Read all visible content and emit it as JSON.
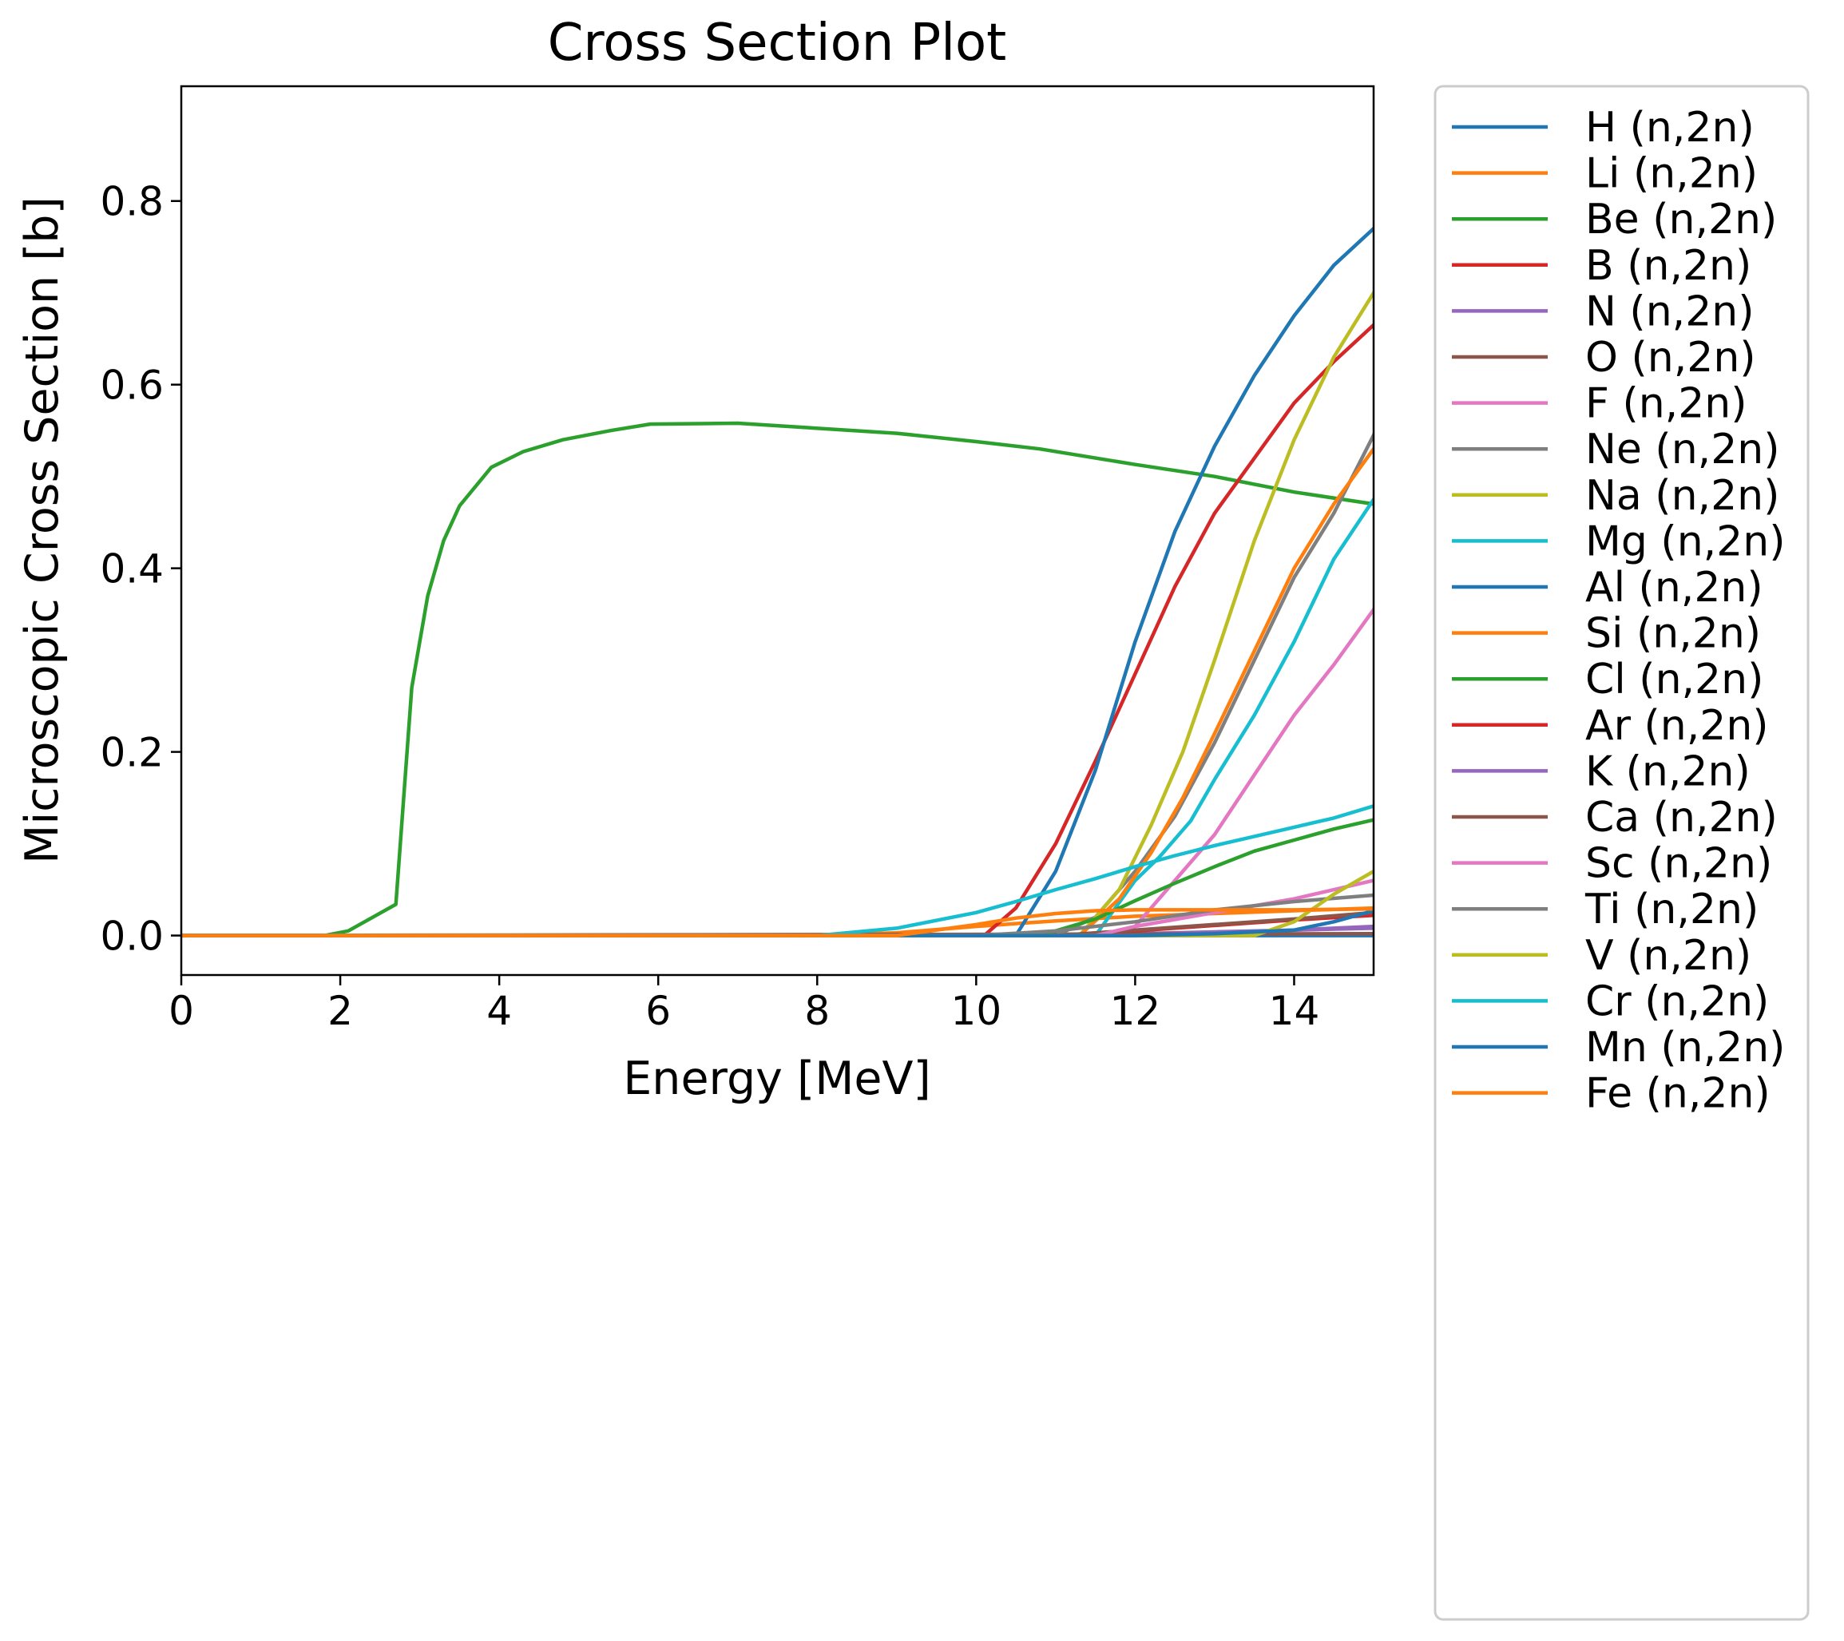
{
  "chart_data": {
    "type": "line",
    "title": "Cross Section Plot",
    "xlabel": "Energy [MeV]",
    "ylabel": "Microscopic Cross Section [b]",
    "xlim": [
      0,
      15
    ],
    "ylim": [
      -0.043,
      0.925
    ],
    "xticks": [
      0,
      2,
      4,
      6,
      8,
      10,
      12,
      14
    ],
    "yticks": [
      0.0,
      0.2,
      0.4,
      0.6,
      0.8
    ],
    "xtick_labels": [
      "0",
      "2",
      "4",
      "6",
      "8",
      "10",
      "12",
      "14"
    ],
    "ytick_labels": [
      "0.0",
      "0.2",
      "0.4",
      "0.6",
      "0.8"
    ],
    "grid": false,
    "legend_position": "outside-right",
    "series": [
      {
        "name": "H (n,2n)",
        "color": "#1f77b4",
        "x": [
          0,
          15
        ],
        "y": [
          0,
          0
        ]
      },
      {
        "name": "Li (n,2n)",
        "color": "#ff7f0e",
        "x": [
          0,
          8,
          9,
          10,
          11,
          12,
          13,
          14,
          15
        ],
        "y": [
          0,
          0,
          0.003,
          0.01,
          0.016,
          0.021,
          0.024,
          0.027,
          0.03
        ]
      },
      {
        "name": "Be (n,2n)",
        "color": "#2ca02c",
        "x": [
          0,
          1.8,
          2.1,
          2.7,
          2.9,
          3.1,
          3.3,
          3.5,
          3.9,
          4.3,
          4.8,
          5.4,
          5.9,
          7.0,
          9.0,
          10.0,
          10.8,
          12.0,
          13.0,
          14.0,
          15.0
        ],
        "y": [
          0,
          0,
          0.005,
          0.034,
          0.27,
          0.37,
          0.43,
          0.468,
          0.51,
          0.527,
          0.54,
          0.55,
          0.557,
          0.558,
          0.547,
          0.538,
          0.53,
          0.513,
          0.5,
          0.483,
          0.47
        ]
      },
      {
        "name": "B (n,2n)",
        "color": "#d62728",
        "x": [
          0,
          10.1,
          10.5,
          11.0,
          11.5,
          12.0,
          12.5,
          13.0,
          13.5,
          14.0,
          14.5,
          15.0
        ],
        "y": [
          0,
          0,
          0.03,
          0.1,
          0.19,
          0.285,
          0.38,
          0.46,
          0.52,
          0.58,
          0.625,
          0.665
        ]
      },
      {
        "name": "N (n,2n)",
        "color": "#9467bd",
        "x": [
          0,
          11.3,
          12,
          13,
          14,
          15
        ],
        "y": [
          0,
          0,
          0.002,
          0.004,
          0.006,
          0.008
        ]
      },
      {
        "name": "O (n,2n)",
        "color": "#8c564b",
        "x": [
          0,
          15.0
        ],
        "y": [
          0,
          0.002
        ]
      },
      {
        "name": "F (n,2n)",
        "color": "#e377c2",
        "x": [
          0,
          11.7,
          12.0,
          12.5,
          13.0,
          13.5,
          14.0,
          14.5,
          15.0
        ],
        "y": [
          0,
          0,
          0.01,
          0.06,
          0.11,
          0.175,
          0.24,
          0.295,
          0.355
        ]
      },
      {
        "name": "Ne (n,2n)",
        "color": "#7f7f7f",
        "x": [
          0,
          11.0,
          11.5,
          12.0,
          12.5,
          13.0,
          13.5,
          14.0,
          14.5,
          15.0
        ],
        "y": [
          0,
          0,
          0.02,
          0.07,
          0.13,
          0.21,
          0.3,
          0.39,
          0.46,
          0.545
        ]
      },
      {
        "name": "Na (n,2n)",
        "color": "#bcbd22",
        "x": [
          0,
          11.3,
          11.8,
          12.2,
          12.6,
          13.0,
          13.5,
          14.0,
          14.5,
          15.0
        ],
        "y": [
          0,
          0,
          0.05,
          0.12,
          0.2,
          0.3,
          0.43,
          0.54,
          0.63,
          0.7
        ]
      },
      {
        "name": "Mg (n,2n)",
        "color": "#17becf",
        "x": [
          0,
          11.5,
          12.0,
          12.3,
          12.7,
          13.0,
          13.5,
          14.0,
          14.5,
          15.0
        ],
        "y": [
          0,
          0,
          0.06,
          0.085,
          0.125,
          0.17,
          0.24,
          0.32,
          0.41,
          0.475
        ]
      },
      {
        "name": "Al (n,2n)",
        "color": "#1f77b4",
        "x": [
          0,
          10.5,
          11.0,
          11.5,
          12.0,
          12.5,
          13.0,
          13.5,
          14.0,
          14.5,
          15.0
        ],
        "y": [
          0,
          0,
          0.07,
          0.18,
          0.32,
          0.44,
          0.533,
          0.61,
          0.675,
          0.73,
          0.77
        ]
      },
      {
        "name": "Si (n,2n)",
        "color": "#ff7f0e",
        "x": [
          0,
          11.3,
          11.8,
          12.2,
          12.6,
          13.0,
          13.5,
          14.0,
          14.5,
          15.0
        ],
        "y": [
          0,
          0,
          0.04,
          0.09,
          0.15,
          0.22,
          0.31,
          0.4,
          0.47,
          0.53
        ]
      },
      {
        "name": "Cl (n,2n)",
        "color": "#2ca02c",
        "x": [
          0,
          10.8,
          11.5,
          12.0,
          12.5,
          13.0,
          13.5,
          14.0,
          14.5,
          15.0
        ],
        "y": [
          0,
          0,
          0.018,
          0.038,
          0.057,
          0.075,
          0.092,
          0.104,
          0.116,
          0.126
        ]
      },
      {
        "name": "Ar (n,2n)",
        "color": "#d62728",
        "x": [
          0,
          11.0,
          12.0,
          13.0,
          14.0,
          15.0
        ],
        "y": [
          0,
          0,
          0.005,
          0.011,
          0.017,
          0.022
        ]
      },
      {
        "name": "K (n,2n)",
        "color": "#9467bd",
        "x": [
          0,
          12.5,
          13.0,
          14.0,
          15.0
        ],
        "y": [
          0,
          0,
          0.002,
          0.006,
          0.01
        ]
      },
      {
        "name": "Ca (n,2n)",
        "color": "#8c564b",
        "x": [
          0,
          11.0,
          12.0,
          13.0,
          14.0,
          15.0
        ],
        "y": [
          0,
          0,
          0.006,
          0.012,
          0.018,
          0.025
        ]
      },
      {
        "name": "Sc (n,2n)",
        "color": "#e377c2",
        "x": [
          0,
          11.5,
          12.0,
          13.0,
          14.0,
          15.0
        ],
        "y": [
          0,
          0,
          0.01,
          0.025,
          0.04,
          0.06
        ]
      },
      {
        "name": "Ti (n,2n)",
        "color": "#7f7f7f",
        "x": [
          0,
          10.0,
          11.0,
          12.0,
          13.0,
          14.0,
          15.0
        ],
        "y": [
          0,
          0,
          0.005,
          0.015,
          0.028,
          0.037,
          0.044
        ]
      },
      {
        "name": "V (n,2n)",
        "color": "#bcbd22",
        "x": [
          0,
          13.5,
          14.0,
          14.5,
          15.0
        ],
        "y": [
          0,
          0,
          0.015,
          0.045,
          0.07
        ]
      },
      {
        "name": "Cr (n,2n)",
        "color": "#17becf",
        "x": [
          0,
          8.0,
          9.0,
          10.0,
          10.5,
          11.0,
          11.5,
          12.0,
          12.5,
          13.0,
          13.5,
          14.0,
          14.5,
          15.0
        ],
        "y": [
          0,
          0,
          0.008,
          0.025,
          0.037,
          0.05,
          0.062,
          0.075,
          0.087,
          0.098,
          0.108,
          0.118,
          0.128,
          0.141
        ]
      },
      {
        "name": "Mn (n,2n)",
        "color": "#1f77b4",
        "x": [
          0,
          11.0,
          12.0,
          13.0,
          14.0,
          14.5,
          15.0
        ],
        "y": [
          0,
          0,
          0,
          0.002,
          0.006,
          0.015,
          0.027
        ]
      },
      {
        "name": "Fe (n,2n)",
        "color": "#ff7f0e",
        "x": [
          0,
          9.0,
          10.0,
          10.5,
          11.0,
          11.5,
          12.0,
          13.0,
          14.0,
          15.0
        ],
        "y": [
          0,
          0,
          0.012,
          0.019,
          0.024,
          0.027,
          0.028,
          0.028,
          0.028,
          0.029
        ]
      }
    ]
  }
}
